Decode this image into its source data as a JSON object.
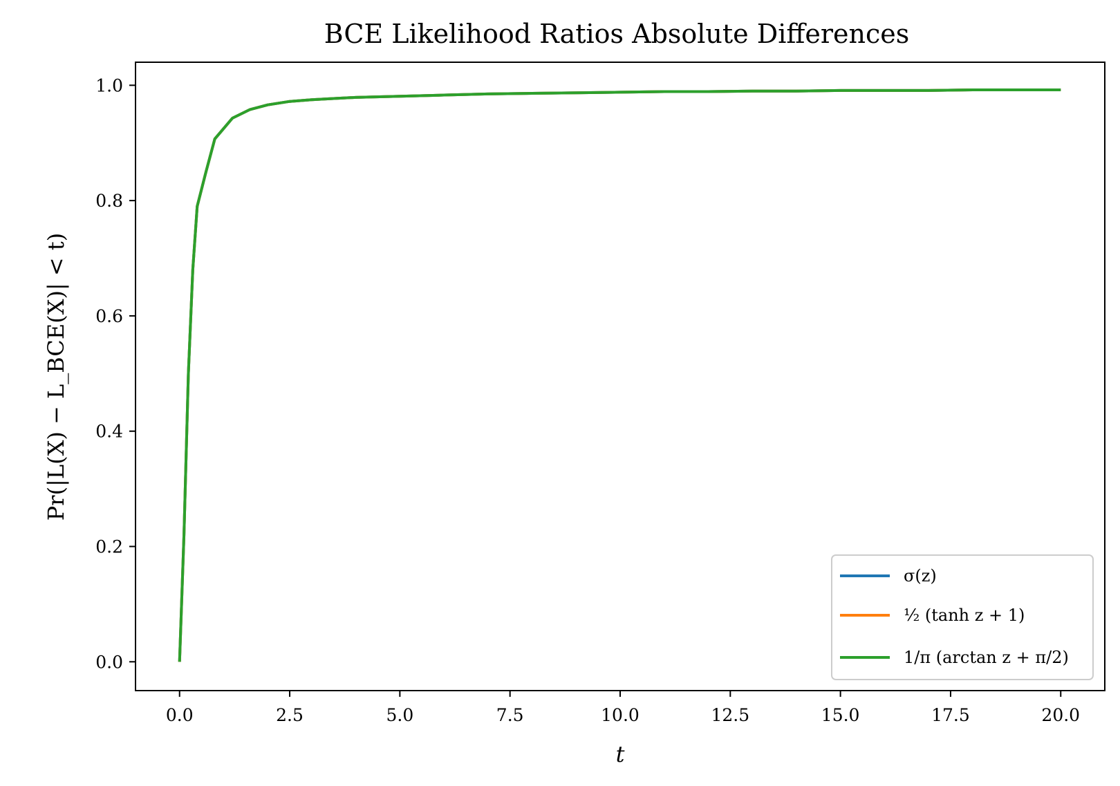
{
  "chart_data": {
    "type": "line",
    "title": "BCE Likelihood Ratios Absolute Differences",
    "xlabel": "t",
    "ylabel": "Pr(|L(X) − L_BCE(X)| < t)",
    "xlim": [
      -1.0,
      21.0
    ],
    "ylim": [
      -0.05,
      1.04
    ],
    "xticks": [
      0.0,
      2.5,
      5.0,
      7.5,
      10.0,
      12.5,
      15.0,
      17.5,
      20.0
    ],
    "xtick_labels": [
      "0.0",
      "2.5",
      "5.0",
      "7.5",
      "10.0",
      "12.5",
      "15.0",
      "17.5",
      "20.0"
    ],
    "yticks": [
      0.0,
      0.2,
      0.4,
      0.6,
      0.8,
      1.0
    ],
    "ytick_labels": [
      "0.0",
      "0.2",
      "0.4",
      "0.6",
      "0.8",
      "1.0"
    ],
    "grid": false,
    "legend_position": "lower-right",
    "x": [
      0.0,
      0.1,
      0.2,
      0.3,
      0.4,
      0.6,
      0.8,
      1.0,
      1.2,
      1.6,
      2.0,
      2.5,
      3.0,
      3.5,
      4.0,
      5.0,
      6.0,
      7.0,
      8.0,
      9.0,
      10.0,
      11.0,
      12.0,
      13.0,
      14.0,
      15.0,
      16.0,
      17.0,
      18.0,
      19.0,
      20.0
    ],
    "series": [
      {
        "name": "σ(z)",
        "color": "#1f77b4",
        "values": [
          0.0,
          0.22,
          0.5,
          0.68,
          0.79,
          0.85,
          0.907,
          0.925,
          0.943,
          0.958,
          0.966,
          0.972,
          0.975,
          0.977,
          0.979,
          0.981,
          0.983,
          0.985,
          0.986,
          0.987,
          0.988,
          0.989,
          0.989,
          0.99,
          0.99,
          0.991,
          0.991,
          0.991,
          0.992,
          0.992,
          0.992
        ]
      },
      {
        "name": "½ (tanh z + 1)",
        "color": "#ff7f0e",
        "values": [
          0.0,
          0.22,
          0.5,
          0.68,
          0.79,
          0.85,
          0.907,
          0.925,
          0.943,
          0.958,
          0.966,
          0.972,
          0.975,
          0.977,
          0.979,
          0.981,
          0.983,
          0.985,
          0.986,
          0.987,
          0.988,
          0.989,
          0.989,
          0.99,
          0.99,
          0.991,
          0.991,
          0.991,
          0.992,
          0.992,
          0.992
        ]
      },
      {
        "name": "1/π (arctan z + π/2)",
        "color": "#2ca02c",
        "values": [
          0.0,
          0.22,
          0.5,
          0.68,
          0.79,
          0.85,
          0.907,
          0.925,
          0.943,
          0.958,
          0.966,
          0.972,
          0.975,
          0.977,
          0.979,
          0.981,
          0.983,
          0.985,
          0.986,
          0.987,
          0.988,
          0.989,
          0.989,
          0.99,
          0.99,
          0.991,
          0.991,
          0.991,
          0.992,
          0.992,
          0.992
        ]
      }
    ]
  }
}
